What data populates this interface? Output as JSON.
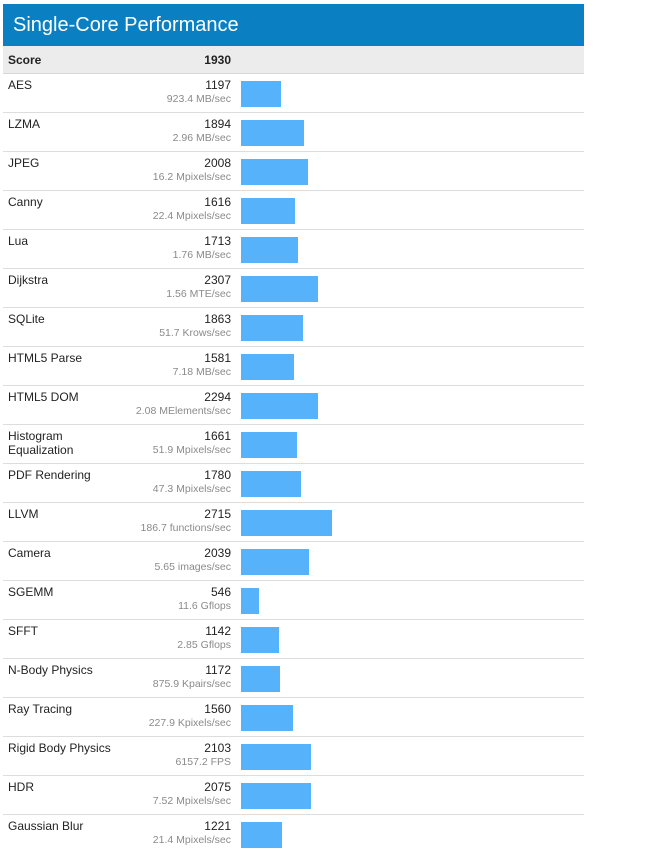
{
  "title": "Single-Core Performance",
  "header": {
    "label": "Score",
    "value": "1930"
  },
  "colors": {
    "title_bg": "#0a80c2",
    "bar": "#56b2fa"
  },
  "chart_data": {
    "type": "bar",
    "orientation": "horizontal",
    "title": "Single-Core Performance",
    "overall_score": 1930,
    "categories": [
      "AES",
      "LZMA",
      "JPEG",
      "Canny",
      "Lua",
      "Dijkstra",
      "SQLite",
      "HTML5 Parse",
      "HTML5 DOM",
      "Histogram Equalization",
      "PDF Rendering",
      "LLVM",
      "Camera",
      "SGEMM",
      "SFFT",
      "N-Body Physics",
      "Ray Tracing",
      "Rigid Body Physics",
      "HDR",
      "Gaussian Blur"
    ],
    "values": [
      1197,
      1894,
      2008,
      1616,
      1713,
      2307,
      1863,
      1581,
      2294,
      1661,
      1780,
      2715,
      2039,
      546,
      1142,
      1172,
      1560,
      2103,
      2075,
      1221
    ],
    "details": [
      "923.4 MB/sec",
      "2.96 MB/sec",
      "16.2 Mpixels/sec",
      "22.4 Mpixels/sec",
      "1.76 MB/sec",
      "1.56 MTE/sec",
      "51.7 Krows/sec",
      "7.18 MB/sec",
      "2.08 MElements/sec",
      "51.9 Mpixels/sec",
      "47.3 Mpixels/sec",
      "186.7 functions/sec",
      "5.65 images/sec",
      "11.6 Gflops",
      "2.85 Gflops",
      "875.9 Kpairs/sec",
      "227.9 Kpixels/sec",
      "6157.2 FPS",
      "7.52 Mpixels/sec",
      "21.4 Mpixels/sec"
    ],
    "xlim": [
      0,
      2715
    ]
  }
}
